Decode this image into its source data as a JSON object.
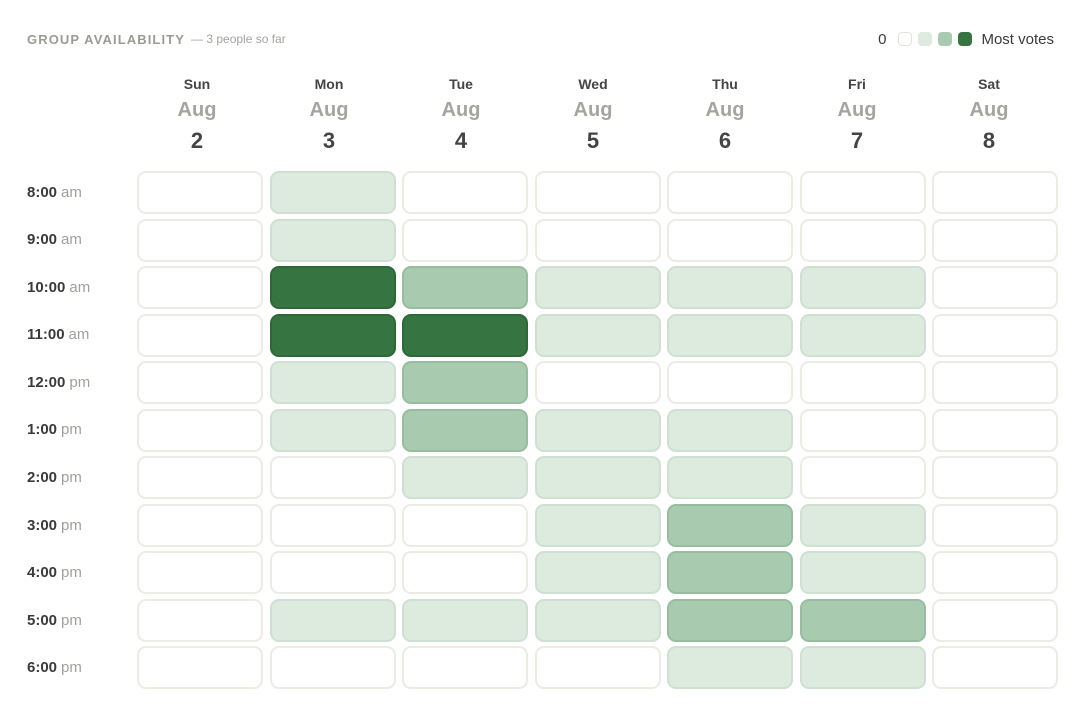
{
  "header": {
    "title": "GROUP AVAILABILITY",
    "subtitle": "— 3 people so far"
  },
  "legend": {
    "min_label": "0",
    "max_label": "Most votes",
    "colors": [
      "#ffffff",
      "#dcebde",
      "#a8cbb0",
      "#367541"
    ]
  },
  "days": [
    {
      "dow": "Sun",
      "month": "Aug",
      "date": "2"
    },
    {
      "dow": "Mon",
      "month": "Aug",
      "date": "3"
    },
    {
      "dow": "Tue",
      "month": "Aug",
      "date": "4"
    },
    {
      "dow": "Wed",
      "month": "Aug",
      "date": "5"
    },
    {
      "dow": "Thu",
      "month": "Aug",
      "date": "6"
    },
    {
      "dow": "Fri",
      "month": "Aug",
      "date": "7"
    },
    {
      "dow": "Sat",
      "month": "Aug",
      "date": "8"
    }
  ],
  "times": [
    {
      "hm": "8:00",
      "ap": "am"
    },
    {
      "hm": "9:00",
      "ap": "am"
    },
    {
      "hm": "10:00",
      "ap": "am"
    },
    {
      "hm": "11:00",
      "ap": "am"
    },
    {
      "hm": "12:00",
      "ap": "pm"
    },
    {
      "hm": "1:00",
      "ap": "pm"
    },
    {
      "hm": "2:00",
      "ap": "pm"
    },
    {
      "hm": "3:00",
      "ap": "pm"
    },
    {
      "hm": "4:00",
      "ap": "pm"
    },
    {
      "hm": "5:00",
      "ap": "pm"
    },
    {
      "hm": "6:00",
      "ap": "pm"
    }
  ],
  "availability": [
    [
      0,
      1,
      0,
      0,
      0,
      0,
      0
    ],
    [
      0,
      1,
      0,
      0,
      0,
      0,
      0
    ],
    [
      0,
      3,
      2,
      1,
      1,
      1,
      0
    ],
    [
      0,
      3,
      3,
      1,
      1,
      1,
      0
    ],
    [
      0,
      1,
      2,
      0,
      0,
      0,
      0
    ],
    [
      0,
      1,
      2,
      1,
      1,
      0,
      0
    ],
    [
      0,
      0,
      1,
      1,
      1,
      0,
      0
    ],
    [
      0,
      0,
      0,
      1,
      2,
      1,
      0
    ],
    [
      0,
      0,
      0,
      1,
      2,
      1,
      0
    ],
    [
      0,
      1,
      1,
      1,
      2,
      2,
      0
    ],
    [
      0,
      0,
      0,
      0,
      1,
      1,
      0
    ]
  ]
}
